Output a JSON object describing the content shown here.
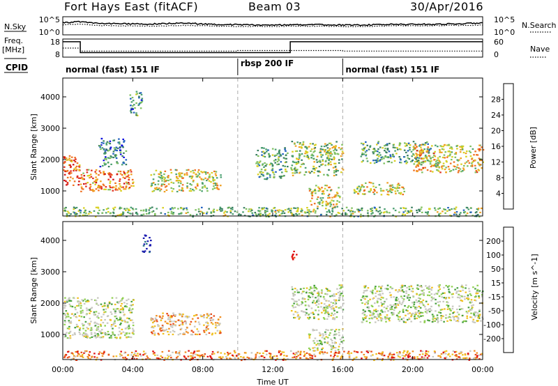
{
  "header": {
    "site": "Fort Hays East (fitACF)",
    "beam": "Beam 03",
    "date": "30/Apr/2016"
  },
  "side_labels": {
    "nsky": "N.Sky",
    "nsearch": "N.Search",
    "freq": "Freq.",
    "freq_unit": "[MHz]",
    "nave": "Nave",
    "cpid": "CPID"
  },
  "chart_data": [
    {
      "id": "noise",
      "type": "line",
      "ylabel_left": "N.Sky",
      "ylabel_right": "N.Search",
      "ylim": [
        0,
        5
      ],
      "y_tick_labels_left": [
        "10^5",
        "10^0"
      ],
      "y_tick_labels_right": [
        "10^5",
        "10^0"
      ],
      "x": [
        0,
        1,
        2,
        3,
        4,
        5,
        6,
        7,
        8,
        9,
        10,
        11,
        12,
        13,
        14,
        15,
        16,
        17,
        18,
        19,
        20,
        21,
        22,
        23,
        24
      ],
      "series": [
        {
          "role": "sky",
          "style": "solid",
          "values": [
            3.4,
            3.6,
            3.2,
            3.1,
            3.0,
            3.0,
            3.1,
            3.3,
            3.0,
            2.9,
            2.8,
            2.7,
            2.7,
            2.8,
            2.8,
            2.8,
            2.7,
            2.7,
            2.8,
            2.9,
            2.9,
            2.9,
            3.0,
            3.1,
            3.3
          ]
        },
        {
          "role": "search",
          "style": "dotted",
          "values": [
            2.8,
            2.9,
            2.6,
            2.5,
            2.5,
            2.4,
            2.5,
            2.6,
            2.5,
            2.4,
            2.3,
            2.3,
            2.3,
            2.4,
            2.4,
            2.4,
            2.3,
            2.3,
            2.4,
            2.5,
            2.5,
            2.5,
            2.6,
            2.6,
            2.7
          ]
        }
      ]
    },
    {
      "id": "freq",
      "type": "line",
      "ylabel_left": "Freq. [MHz]",
      "ylabel_right": "Nave",
      "y_tick_labels_left": [
        "18",
        "8"
      ],
      "y_tick_labels_right": [
        "60",
        "0"
      ],
      "freq_ylim": [
        8,
        18
      ],
      "nave_ylim": [
        0,
        60
      ],
      "freq_steps": [
        {
          "t0": 0.0,
          "t1": 1.0,
          "value": 16.5
        },
        {
          "t0": 1.0,
          "t1": 13.0,
          "value": 10.5
        },
        {
          "t0": 13.0,
          "t1": 24.0,
          "value": 16.5
        }
      ],
      "nave_steps": [
        {
          "t0": 0.0,
          "t1": 1.0,
          "value": 30
        },
        {
          "t0": 1.0,
          "t1": 10.0,
          "value": 20
        },
        {
          "t0": 10.0,
          "t1": 16.0,
          "value": 22
        },
        {
          "t0": 16.0,
          "t1": 24.0,
          "value": 20
        }
      ]
    },
    {
      "id": "cpid",
      "type": "table",
      "segments": [
        {
          "label": "normal (fast) 151 IF",
          "t0": 0,
          "t1": 10
        },
        {
          "label": "rbsp 200 IF",
          "t0": 10,
          "t1": 16
        },
        {
          "label": "normal (fast) 151 IF",
          "t0": 16,
          "t1": 24
        }
      ]
    },
    {
      "id": "power",
      "type": "heatmap",
      "ylabel": "Slant Range [km]",
      "ylim": [
        200,
        4600
      ],
      "y_tick_labels": [
        "1000",
        "2000",
        "3000",
        "4000"
      ],
      "xlim": [
        0,
        24
      ],
      "colorbar_label": "Power [dB]",
      "colorbar_ticks": [
        "28",
        "24",
        "20",
        "16",
        "12",
        "8",
        "4"
      ],
      "colorbar_colors": [
        "#1010e0",
        "#2060c0",
        "#3a8060",
        "#4aa070",
        "#80c060",
        "#d8d020",
        "#f0a020",
        "#f07020",
        "#e03020",
        "#d01010"
      ],
      "scatter_regions": [
        {
          "t0": 0.0,
          "t1": 1.0,
          "r0": 1200,
          "r1": 2200,
          "level": 0.75
        },
        {
          "t0": 1.0,
          "t1": 4.0,
          "r0": 1000,
          "r1": 1700,
          "level": 0.7
        },
        {
          "t0": 2.0,
          "t1": 3.6,
          "r0": 1800,
          "r1": 2700,
          "level": 0.25
        },
        {
          "t0": 3.8,
          "t1": 4.5,
          "r0": 3400,
          "r1": 4200,
          "level": 0.3
        },
        {
          "t0": 5.0,
          "t1": 9.0,
          "r0": 1000,
          "r1": 1700,
          "level": 0.55
        },
        {
          "t0": 11.0,
          "t1": 12.8,
          "r0": 1400,
          "r1": 2400,
          "level": 0.35
        },
        {
          "t0": 13.0,
          "t1": 16.0,
          "r0": 1500,
          "r1": 2600,
          "level": 0.45
        },
        {
          "t0": 14.0,
          "t1": 15.8,
          "r0": 500,
          "r1": 1200,
          "level": 0.55
        },
        {
          "t0": 16.5,
          "t1": 19.5,
          "r0": 900,
          "r1": 1300,
          "level": 0.55
        },
        {
          "t0": 17.0,
          "t1": 21.0,
          "r0": 1900,
          "r1": 2600,
          "level": 0.35
        },
        {
          "t0": 20.0,
          "t1": 24.0,
          "r0": 1600,
          "r1": 2500,
          "level": 0.6
        },
        {
          "t0": 0.0,
          "t1": 24.0,
          "r0": 200,
          "r1": 500,
          "level": 0.4
        }
      ]
    },
    {
      "id": "velocity",
      "type": "heatmap",
      "ylabel": "Slant Range [km]",
      "xlabel": "Time UT",
      "ylim": [
        200,
        4600
      ],
      "y_tick_labels": [
        "1000",
        "2000",
        "3000",
        "4000"
      ],
      "xlim": [
        0,
        24
      ],
      "x_tick_labels": [
        "00:00",
        "04:00",
        "08:00",
        "12:00",
        "16:00",
        "20:00",
        "00:00"
      ],
      "colorbar_label": "Velocity [m s^-1]",
      "colorbar_ticks": [
        "200",
        "100",
        "50",
        "15",
        "-15",
        "-50",
        "-100",
        "-200"
      ],
      "colorbar_colors": [
        "#1818b0",
        "#2e7a88",
        "#48a040",
        "#90d050",
        "#c8c8c0",
        "#c8c8c0",
        "#f0c020",
        "#f08c20",
        "#e84c18",
        "#e01010"
      ],
      "scatter_regions": [
        {
          "t0": 0.0,
          "t1": 4.0,
          "r0": 900,
          "r1": 2200,
          "level": 0.45
        },
        {
          "t0": 5.0,
          "t1": 9.0,
          "r0": 1000,
          "r1": 1700,
          "level": 0.65
        },
        {
          "t0": 4.5,
          "t1": 5.0,
          "r0": 3600,
          "r1": 4200,
          "level": 0.02
        },
        {
          "t0": 13.0,
          "t1": 13.4,
          "r0": 3400,
          "r1": 3700,
          "level": 0.98
        },
        {
          "t0": 13.0,
          "t1": 16.0,
          "r0": 1500,
          "r1": 2600,
          "level": 0.45
        },
        {
          "t0": 14.0,
          "t1": 16.0,
          "r0": 500,
          "r1": 1200,
          "level": 0.45
        },
        {
          "t0": 17.0,
          "t1": 24.0,
          "r0": 1400,
          "r1": 2600,
          "level": 0.45
        },
        {
          "t0": 0.0,
          "t1": 24.0,
          "r0": 200,
          "r1": 500,
          "level": 0.75
        }
      ]
    }
  ]
}
